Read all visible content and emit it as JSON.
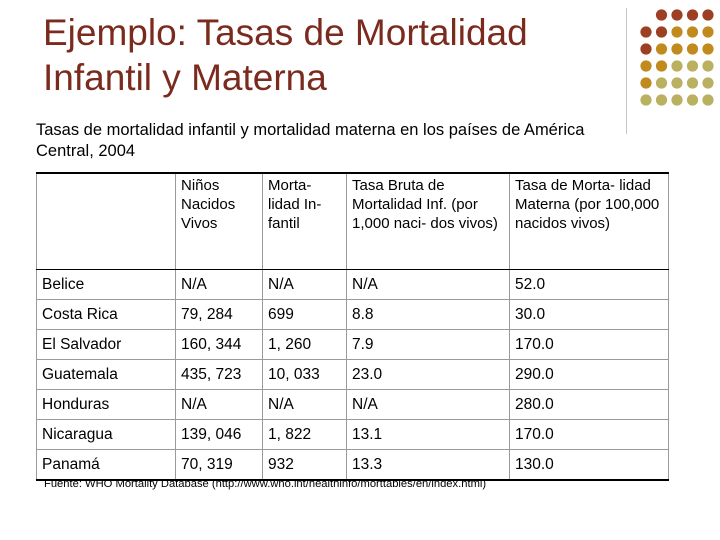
{
  "slide": {
    "title": "Ejemplo: Tasas de Mortalidad Infantil y Materna",
    "subtitle": "Tasas de mortalidad infantil y mortalidad materna en los países de América Central, 2004",
    "source": "Fuente: WHO Mortality Database (http://www.who.int/healthinfo/morttables/en/index.html)"
  },
  "decoration": {
    "dot_colors": [
      "#9c3f23",
      "#c08a1d",
      "#b9b060"
    ]
  },
  "table": {
    "headers": [
      "",
      "Niños Nacidos Vivos",
      "Morta- lidad In- fantil",
      "Tasa Bruta de Mortalidad Inf. (por 1,000 naci- dos vivos)",
      "Tasa de Morta- lidad Materna (por 100,000 nacidos vivos)"
    ],
    "rows": [
      [
        "Belice",
        "N/A",
        "N/A",
        "N/A",
        "52.0"
      ],
      [
        "Costa Rica",
        "79, 284",
        "699",
        "8.8",
        "30.0"
      ],
      [
        "El Salvador",
        "160, 344",
        "1, 260",
        "7.9",
        "170.0"
      ],
      [
        "Guatemala",
        "435, 723",
        "10, 033",
        "23.0",
        "290.0"
      ],
      [
        "Honduras",
        "N/A",
        "N/A",
        "N/A",
        "280.0"
      ],
      [
        "Nicaragua",
        "139, 046",
        "1, 822",
        "13.1",
        "170.0"
      ],
      [
        "Panamá",
        "70, 319",
        "932",
        "13.3",
        "130.0"
      ]
    ]
  }
}
